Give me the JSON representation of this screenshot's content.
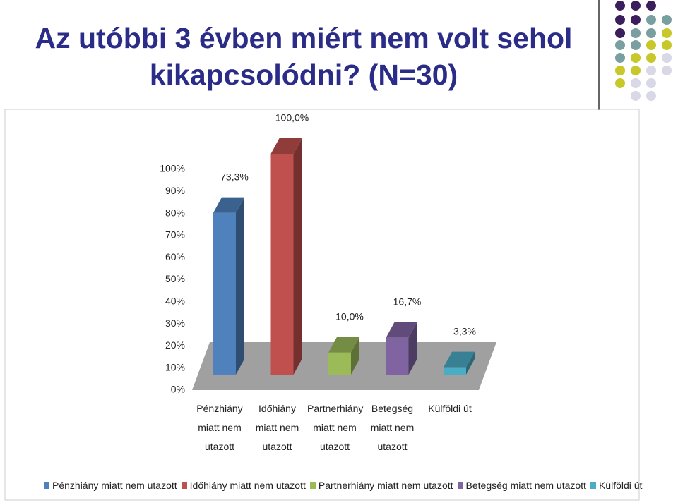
{
  "chart_data": {
    "type": "bar",
    "title": "Az utóbbi 3 évben miért nem volt sehol kikapcsolódni? (N=30)",
    "categories": [
      "Pénzhiány miatt nem utazott",
      "Időhiány miatt nem utazott",
      "Partnerhiány miatt nem utazott",
      "Betegség miatt nem utazott",
      "Külföldi út"
    ],
    "values": [
      73.3,
      100,
      10,
      16.7,
      3.3
    ],
    "value_labels": [
      "73,3%",
      "100,0%",
      "10,0%",
      "16,7%",
      "3,3%"
    ],
    "colors": [
      "#4f81bd",
      "#c0504d",
      "#9bbb59",
      "#8064a2",
      "#4bacc6"
    ],
    "ylim": [
      0,
      100
    ],
    "yticks": [
      {
        "value": 0,
        "label": "0%"
      },
      {
        "value": 10,
        "label": "10%"
      },
      {
        "value": 20,
        "label": "20%"
      },
      {
        "value": 30,
        "label": "30%"
      },
      {
        "value": 40,
        "label": "40%"
      },
      {
        "value": 50,
        "label": "50%"
      },
      {
        "value": 60,
        "label": "60%"
      },
      {
        "value": 70,
        "label": "70%"
      },
      {
        "value": 80,
        "label": "80%"
      },
      {
        "value": 90,
        "label": "90%"
      },
      {
        "value": 100,
        "label": "100%"
      }
    ],
    "legend": "bottom"
  }
}
